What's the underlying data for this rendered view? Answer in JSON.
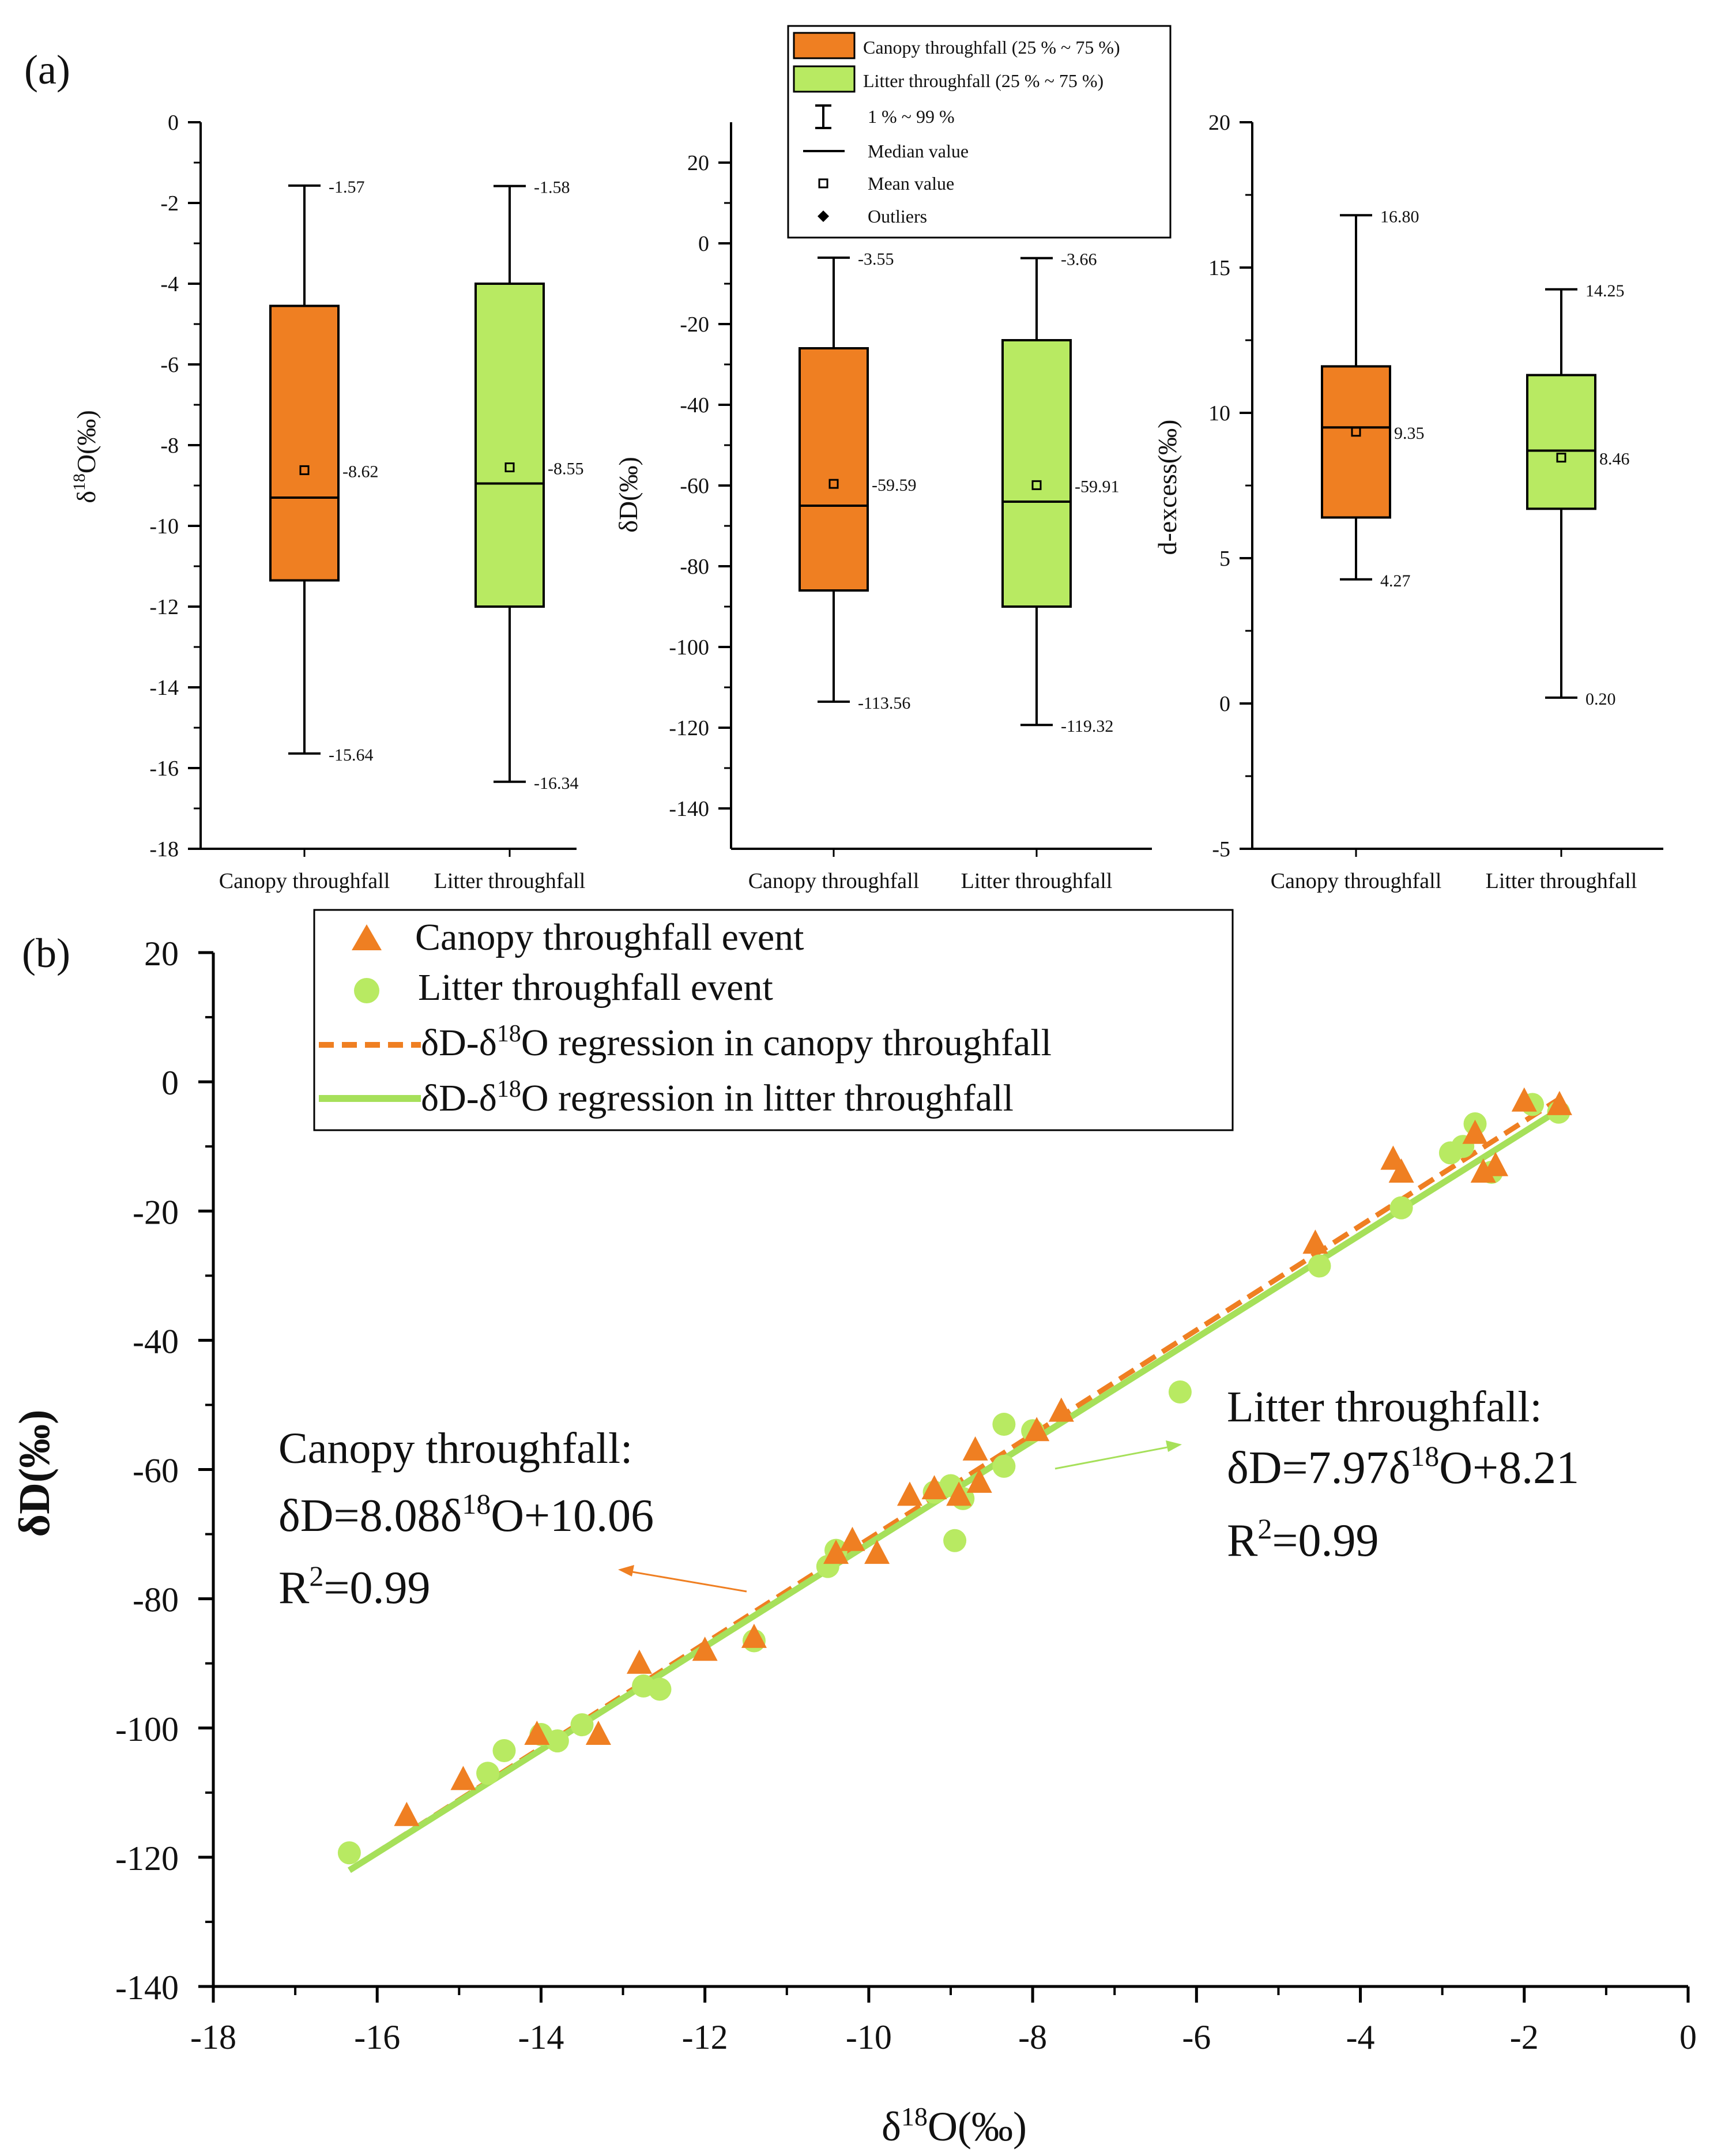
{
  "colors": {
    "canopy": "#ef7f22",
    "litter": "#b8ea62",
    "litter_line": "#a6e05a",
    "axis": "#000000"
  },
  "panel_a": {
    "label": "(a)",
    "categories": [
      "Canopy throughfall",
      "Litter throughfall"
    ],
    "legend": {
      "canopy_box": "Canopy throughfall (25 % ~ 75 %)",
      "litter_box": "Litter throughfall (25 % ~ 75 %)",
      "whisker": "1 % ~ 99 %",
      "median": "Median value",
      "mean": "Mean value",
      "outliers": "Outliers"
    }
  },
  "panel_b": {
    "label": "(b)",
    "legend": {
      "canopy_event": "Canopy throughfall event",
      "litter_event": "Litter throughfall event",
      "canopy_reg_prefix": "δD-δ",
      "canopy_reg_sup": "18",
      "canopy_reg_suffix": "O regression in canopy throughfall",
      "litter_reg_prefix": "δD-δ",
      "litter_reg_sup": "18",
      "litter_reg_suffix": "O regression in litter throughfall"
    },
    "canopy_annotation": {
      "title": "Canopy throughfall:",
      "eq_a": "δD=8.08δ",
      "eq_sup": "18",
      "eq_b": "O+10.06",
      "r_a": "R",
      "r_sup": "2",
      "r_b": "=0.99"
    },
    "litter_annotation": {
      "title": "Litter throughfall:",
      "eq_a": "δD=7.97δ",
      "eq_sup": "18",
      "eq_b": "O+8.21",
      "r_a": "R",
      "r_sup": "2",
      "r_b": "=0.99"
    },
    "xlabel_a": "δ",
    "xlabel_sup": "18",
    "xlabel_b": "O(‰)",
    "ylabel": "δD(‰)"
  },
  "chart_data": [
    {
      "type": "box",
      "title": "",
      "ylabel_a": "δ",
      "ylabel_sup": "18",
      "ylabel_b": "O(‰)",
      "ylim": [
        -18,
        0
      ],
      "yticks": [
        0,
        -2,
        -4,
        -6,
        -8,
        -10,
        -12,
        -14,
        -16,
        -18
      ],
      "ytick_labels": [
        "0",
        "-2",
        "-4",
        "-6",
        "-8",
        "-10",
        "-12",
        "-14",
        "-16",
        "-18"
      ],
      "categories": [
        "Canopy throughfall",
        "Litter throughfall"
      ],
      "boxes": [
        {
          "name": "Canopy throughfall",
          "whisker_high": -1.57,
          "q3": -4.55,
          "median": -9.3,
          "mean": -8.62,
          "q1": -11.35,
          "whisker_low": -15.64,
          "label_high": "-1.57",
          "label_mean": "-8.62",
          "label_low": "-15.64"
        },
        {
          "name": "Litter throughfall",
          "whisker_high": -1.58,
          "q3": -4.0,
          "median": -8.95,
          "mean": -8.55,
          "q1": -12.0,
          "whisker_low": -16.34,
          "label_high": "-1.58",
          "label_mean": "-8.55",
          "label_low": "-16.34"
        }
      ]
    },
    {
      "type": "box",
      "title": "",
      "ylabel": "δD(‰)",
      "ylim": [
        -150,
        30
      ],
      "yticks": [
        20,
        0,
        -20,
        -40,
        -60,
        -80,
        -100,
        -120,
        -140
      ],
      "ytick_labels": [
        "20",
        "0",
        "-20",
        "-40",
        "-60",
        "-80",
        "-100",
        "-120",
        "-140"
      ],
      "categories": [
        "Canopy throughfall",
        "Litter throughfall"
      ],
      "boxes": [
        {
          "name": "Canopy throughfall",
          "whisker_high": -3.55,
          "q3": -26,
          "median": -65,
          "mean": -59.59,
          "q1": -86,
          "whisker_low": -113.56,
          "label_high": "-3.55",
          "label_mean": "-59.59",
          "label_low": "-113.56"
        },
        {
          "name": "Litter throughfall",
          "whisker_high": -3.66,
          "q3": -24,
          "median": -64,
          "mean": -59.91,
          "q1": -90,
          "whisker_low": -119.32,
          "label_high": "-3.66",
          "label_mean": "-59.91",
          "label_low": "-119.32"
        }
      ]
    },
    {
      "type": "box",
      "title": "",
      "ylabel": "d-excess(‰)",
      "ylim": [
        -5,
        20
      ],
      "yticks": [
        20,
        15,
        10,
        5,
        0,
        -5
      ],
      "ytick_labels": [
        "20",
        "15",
        "10",
        "5",
        "0",
        "-5"
      ],
      "categories": [
        "Canopy throughfall",
        "Litter throughfall"
      ],
      "boxes": [
        {
          "name": "Canopy throughfall",
          "whisker_high": 16.8,
          "q3": 11.6,
          "median": 9.5,
          "mean": 9.35,
          "q1": 6.4,
          "whisker_low": 4.27,
          "label_high": "16.80",
          "label_mean": "9.35",
          "label_low": "4.27"
        },
        {
          "name": "Litter throughfall",
          "whisker_high": 14.25,
          "q3": 11.3,
          "median": 8.7,
          "mean": 8.46,
          "q1": 6.7,
          "whisker_low": 0.2,
          "label_high": "14.25",
          "label_mean": "8.46",
          "label_low": "0.20"
        }
      ]
    },
    {
      "type": "scatter",
      "title": "",
      "xlabel": "δ18O(‰)",
      "ylabel": "δD(‰)",
      "xlim": [
        -18,
        0
      ],
      "ylim": [
        -140,
        20
      ],
      "xticks": [
        -18,
        -16,
        -14,
        -12,
        -10,
        -8,
        -6,
        -4,
        -2,
        0
      ],
      "xtick_labels": [
        "-18",
        "-16",
        "-14",
        "-12",
        "-10",
        "-8",
        "-6",
        "-4",
        "-2",
        "0"
      ],
      "yticks": [
        20,
        0,
        -20,
        -40,
        -60,
        -80,
        -100,
        -120,
        -140
      ],
      "ytick_labels": [
        "20",
        "0",
        "-20",
        "-40",
        "-60",
        "-80",
        "-100",
        "-120",
        "-140"
      ],
      "series": [
        {
          "name": "Canopy throughfall event",
          "marker": "triangle",
          "x": [
            -15.64,
            -14.95,
            -14.05,
            -13.3,
            -12.8,
            -12.0,
            -11.4,
            -10.4,
            -10.2,
            -9.9,
            -9.5,
            -9.2,
            -8.9,
            -8.7,
            -8.65,
            -7.95,
            -7.65,
            -4.55,
            -3.6,
            -3.5,
            -2.6,
            -2.5,
            -2.35,
            -2.0,
            -1.57
          ],
          "y": [
            -113.56,
            -108,
            -101,
            -101,
            -90,
            -88,
            -86,
            -73,
            -71,
            -73,
            -64,
            -63,
            -64,
            -57,
            -62,
            -54,
            -51,
            -25,
            -12,
            -14,
            -8,
            -14,
            -13,
            -3,
            -3.55
          ]
        },
        {
          "name": "Litter throughfall event",
          "marker": "circle",
          "x": [
            -16.34,
            -14.65,
            -14.45,
            -14.0,
            -13.8,
            -13.5,
            -12.75,
            -12.55,
            -11.4,
            -10.5,
            -10.4,
            -9.2,
            -9.0,
            -8.95,
            -8.85,
            -8.35,
            -8.35,
            -8.0,
            -6.2,
            -4.5,
            -3.5,
            -2.9,
            -2.75,
            -2.6,
            -2.4,
            -1.9,
            -1.58
          ],
          "y": [
            -119.32,
            -107,
            -103.5,
            -101,
            -102,
            -99.5,
            -93.5,
            -94,
            -86.5,
            -75,
            -72.5,
            -63.5,
            -62.5,
            -71,
            -64.5,
            -59.5,
            -53,
            -54,
            -48,
            -28.5,
            -19.5,
            -11,
            -10,
            -6.5,
            -14,
            -3.5,
            -4.7
          ]
        }
      ],
      "regressions": [
        {
          "name": "δD-δ18O regression in canopy throughfall",
          "slope": 8.08,
          "intercept": 10.06,
          "r2": 0.99,
          "x_range": [
            -16.34,
            -1.57
          ],
          "style": "dashed"
        },
        {
          "name": "δD-δ18O regression in litter throughfall",
          "slope": 7.97,
          "intercept": 8.21,
          "r2": 0.99,
          "x_range": [
            -16.34,
            -1.57
          ],
          "style": "solid"
        }
      ]
    }
  ]
}
